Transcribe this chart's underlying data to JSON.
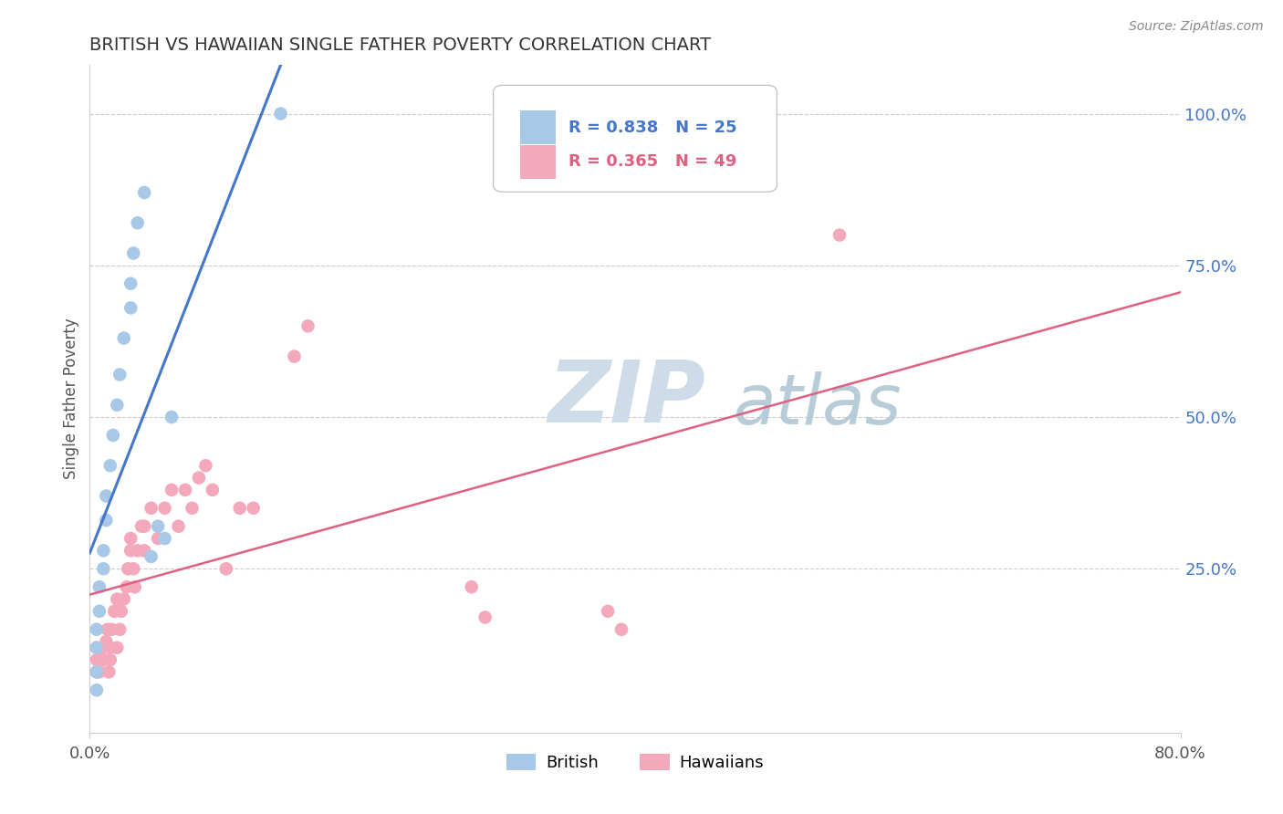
{
  "title": "BRITISH VS HAWAIIAN SINGLE FATHER POVERTY CORRELATION CHART",
  "source": "Source: ZipAtlas.com",
  "ylabel": "Single Father Poverty",
  "xlim": [
    0.0,
    0.8
  ],
  "ylim": [
    -0.02,
    1.08
  ],
  "xtick_positions": [
    0.0,
    0.8
  ],
  "xticklabels": [
    "0.0%",
    "80.0%"
  ],
  "yticks_right": [
    0.25,
    0.5,
    0.75,
    1.0
  ],
  "ytick_right_labels": [
    "25.0%",
    "50.0%",
    "75.0%",
    "100.0%"
  ],
  "british_R": 0.838,
  "british_N": 25,
  "hawaiian_R": 0.365,
  "hawaiian_N": 49,
  "british_color": "#a8c8e8",
  "hawaiian_color": "#f4a8bc",
  "british_line_color": "#4477cc",
  "hawaiian_line_color": "#e06080",
  "british_x": [
    0.005,
    0.005,
    0.005,
    0.005,
    0.007,
    0.007,
    0.01,
    0.01,
    0.012,
    0.012,
    0.015,
    0.017,
    0.02,
    0.022,
    0.025,
    0.03,
    0.03,
    0.032,
    0.035,
    0.04,
    0.045,
    0.05,
    0.055,
    0.06,
    0.14
  ],
  "british_y": [
    0.05,
    0.08,
    0.12,
    0.15,
    0.18,
    0.22,
    0.25,
    0.28,
    0.33,
    0.37,
    0.42,
    0.47,
    0.52,
    0.57,
    0.63,
    0.68,
    0.72,
    0.77,
    0.82,
    0.87,
    0.27,
    0.32,
    0.3,
    0.5,
    1.0
  ],
  "hawaiian_x": [
    0.005,
    0.005,
    0.005,
    0.007,
    0.008,
    0.01,
    0.01,
    0.012,
    0.013,
    0.014,
    0.015,
    0.015,
    0.016,
    0.018,
    0.02,
    0.02,
    0.022,
    0.023,
    0.025,
    0.027,
    0.028,
    0.03,
    0.03,
    0.032,
    0.033,
    0.035,
    0.038,
    0.04,
    0.04,
    0.045,
    0.05,
    0.055,
    0.06,
    0.065,
    0.07,
    0.075,
    0.08,
    0.085,
    0.09,
    0.1,
    0.11,
    0.12,
    0.15,
    0.16,
    0.28,
    0.29,
    0.38,
    0.39,
    0.55
  ],
  "hawaiian_y": [
    0.08,
    0.1,
    0.12,
    0.08,
    0.1,
    0.1,
    0.12,
    0.13,
    0.15,
    0.08,
    0.1,
    0.12,
    0.15,
    0.18,
    0.12,
    0.2,
    0.15,
    0.18,
    0.2,
    0.22,
    0.25,
    0.28,
    0.3,
    0.25,
    0.22,
    0.28,
    0.32,
    0.28,
    0.32,
    0.35,
    0.3,
    0.35,
    0.38,
    0.32,
    0.38,
    0.35,
    0.4,
    0.42,
    0.38,
    0.25,
    0.35,
    0.35,
    0.6,
    0.65,
    0.22,
    0.17,
    0.18,
    0.15,
    0.8
  ],
  "background_color": "#ffffff",
  "grid_color": "#cccccc",
  "watermark_zip_color": "#c8d8e8",
  "watermark_atlas_color": "#a8c0d8"
}
